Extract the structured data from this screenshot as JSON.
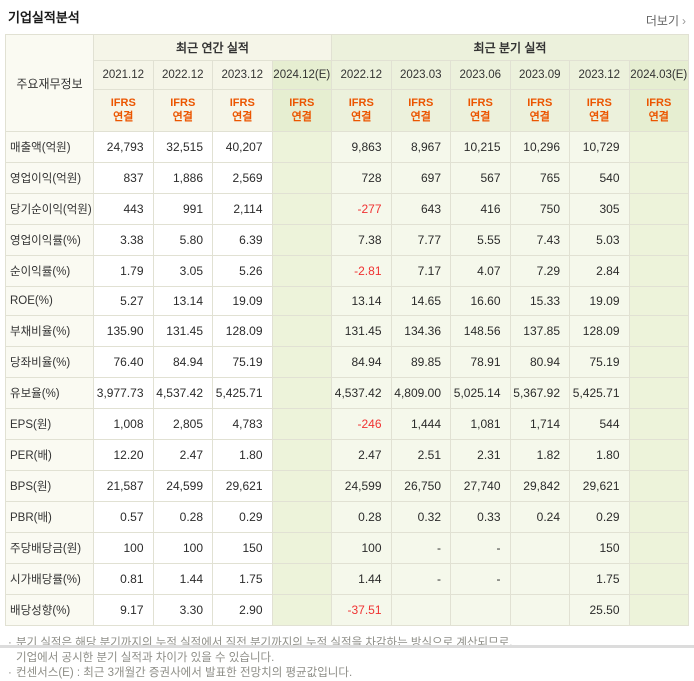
{
  "colors": {
    "ifrs-orange": "#eb5500",
    "neg-red": "#f03232"
  },
  "header": {
    "title": "기업실적분석",
    "more_label": "더보기",
    "more_arrow": "›"
  },
  "table": {
    "corner_header": "주요재무정보",
    "groups": [
      {
        "label": "최근 연간 실적",
        "span": 4,
        "section": "annual"
      },
      {
        "label": "최근 분기 실적",
        "span": 6,
        "section": "quarter"
      }
    ],
    "columns": [
      {
        "period": "2021.12",
        "standard": [
          "IFRS",
          "연결"
        ],
        "section": "annual",
        "estimate": false
      },
      {
        "period": "2022.12",
        "standard": [
          "IFRS",
          "연결"
        ],
        "section": "annual",
        "estimate": false
      },
      {
        "period": "2023.12",
        "standard": [
          "IFRS",
          "연결"
        ],
        "section": "annual",
        "estimate": false
      },
      {
        "period": "2024.12(E)",
        "standard": [
          "IFRS",
          "연결"
        ],
        "section": "annual",
        "estimate": true
      },
      {
        "period": "2022.12",
        "standard": [
          "IFRS",
          "연결"
        ],
        "section": "quarter",
        "estimate": false
      },
      {
        "period": "2023.03",
        "standard": [
          "IFRS",
          "연결"
        ],
        "section": "quarter",
        "estimate": false
      },
      {
        "period": "2023.06",
        "standard": [
          "IFRS",
          "연결"
        ],
        "section": "quarter",
        "estimate": false
      },
      {
        "period": "2023.09",
        "standard": [
          "IFRS",
          "연결"
        ],
        "section": "quarter",
        "estimate": false
      },
      {
        "period": "2023.12",
        "standard": [
          "IFRS",
          "연결"
        ],
        "section": "quarter",
        "estimate": false
      },
      {
        "period": "2024.03(E)",
        "standard": [
          "IFRS",
          "연결"
        ],
        "section": "quarter",
        "estimate": true
      }
    ],
    "rows": [
      {
        "label": "매출액(억원)",
        "values": [
          "24,793",
          "32,515",
          "40,207",
          "",
          "9,863",
          "8,967",
          "10,215",
          "10,296",
          "10,729",
          ""
        ]
      },
      {
        "label": "영업이익(억원)",
        "values": [
          "837",
          "1,886",
          "2,569",
          "",
          "728",
          "697",
          "567",
          "765",
          "540",
          ""
        ]
      },
      {
        "label": "당기순이익(억원)",
        "values": [
          "443",
          "991",
          "2,114",
          "",
          "-277",
          "643",
          "416",
          "750",
          "305",
          ""
        ]
      },
      {
        "label": "영업이익률(%)",
        "values": [
          "3.38",
          "5.80",
          "6.39",
          "",
          "7.38",
          "7.77",
          "5.55",
          "7.43",
          "5.03",
          ""
        ]
      },
      {
        "label": "순이익률(%)",
        "values": [
          "1.79",
          "3.05",
          "5.26",
          "",
          "-2.81",
          "7.17",
          "4.07",
          "7.29",
          "2.84",
          ""
        ]
      },
      {
        "label": "ROE(%)",
        "values": [
          "5.27",
          "13.14",
          "19.09",
          "",
          "13.14",
          "14.65",
          "16.60",
          "15.33",
          "19.09",
          ""
        ]
      },
      {
        "label": "부채비율(%)",
        "values": [
          "135.90",
          "131.45",
          "128.09",
          "",
          "131.45",
          "134.36",
          "148.56",
          "137.85",
          "128.09",
          ""
        ]
      },
      {
        "label": "당좌비율(%)",
        "values": [
          "76.40",
          "84.94",
          "75.19",
          "",
          "84.94",
          "89.85",
          "78.91",
          "80.94",
          "75.19",
          ""
        ]
      },
      {
        "label": "유보율(%)",
        "values": [
          "3,977.73",
          "4,537.42",
          "5,425.71",
          "",
          "4,537.42",
          "4,809.00",
          "5,025.14",
          "5,367.92",
          "5,425.71",
          ""
        ]
      },
      {
        "label": "EPS(원)",
        "values": [
          "1,008",
          "2,805",
          "4,783",
          "",
          "-246",
          "1,444",
          "1,081",
          "1,714",
          "544",
          ""
        ]
      },
      {
        "label": "PER(배)",
        "values": [
          "12.20",
          "2.47",
          "1.80",
          "",
          "2.47",
          "2.51",
          "2.31",
          "1.82",
          "1.80",
          ""
        ]
      },
      {
        "label": "BPS(원)",
        "values": [
          "21,587",
          "24,599",
          "29,621",
          "",
          "24,599",
          "26,750",
          "27,740",
          "29,842",
          "29,621",
          ""
        ]
      },
      {
        "label": "PBR(배)",
        "values": [
          "0.57",
          "0.28",
          "0.29",
          "",
          "0.28",
          "0.32",
          "0.33",
          "0.24",
          "0.29",
          ""
        ]
      },
      {
        "label": "주당배당금(원)",
        "values": [
          "100",
          "100",
          "150",
          "",
          "100",
          "-",
          "-",
          "",
          "150",
          ""
        ]
      },
      {
        "label": "시가배당률(%)",
        "values": [
          "0.81",
          "1.44",
          "1.75",
          "",
          "1.44",
          "-",
          "-",
          "",
          "1.75",
          ""
        ]
      },
      {
        "label": "배당성향(%)",
        "values": [
          "9.17",
          "3.30",
          "2.90",
          "",
          "-37.51",
          "",
          "",
          "",
          "25.50",
          ""
        ]
      }
    ]
  },
  "footnotes": [
    {
      "marker": "·",
      "text": "분기 실적은 해당 분기까지의 누적 실적에서 직전 분기까지의 누적 실적을 차감하는 방식으로 계산되므로,",
      "indent": false
    },
    {
      "marker": "",
      "text": "기업에서 공시한 분기 실적과 차이가 있을 수 있습니다.",
      "indent": true
    },
    {
      "marker": "·",
      "text": "컨센서스(E) : 최근 3개월간 증권사에서 발표한 전망치의 평균값입니다.",
      "indent": false
    }
  ]
}
